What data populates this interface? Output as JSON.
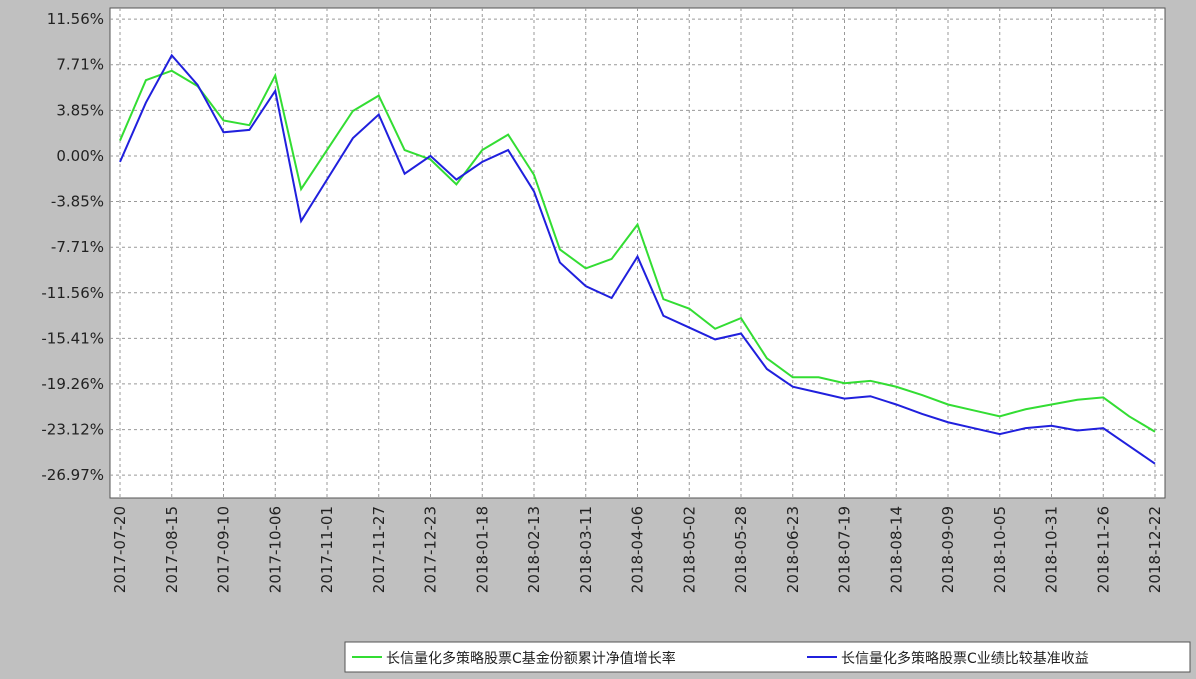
{
  "chart_data": {
    "type": "line",
    "categories": [
      "2017-07-20",
      null,
      "2017-08-15",
      null,
      "2017-09-10",
      null,
      "2017-10-06",
      null,
      "2017-11-01",
      null,
      "2017-11-27",
      null,
      "2017-12-23",
      null,
      "2018-01-18",
      null,
      "2018-02-13",
      null,
      "2018-03-11",
      null,
      "2018-04-06",
      null,
      "2018-05-02",
      null,
      "2018-05-28",
      null,
      "2018-06-23",
      null,
      "2018-07-19",
      null,
      "2018-08-14",
      null,
      "2018-09-09",
      null,
      "2018-10-05",
      null,
      "2018-10-31",
      null,
      "2018-11-26",
      null,
      "2018-12-22"
    ],
    "series": [
      {
        "name": "长信量化多策略股票C基金份额累计净值增长率",
        "color": "#33dd33",
        "values": [
          1.3,
          6.4,
          7.2,
          5.9,
          3.0,
          2.6,
          6.8,
          -2.8,
          0.5,
          3.8,
          5.1,
          0.5,
          -0.3,
          -2.4,
          0.5,
          1.8,
          -1.6,
          -7.9,
          -9.5,
          -8.7,
          -5.8,
          -12.1,
          -12.9,
          -14.6,
          -13.7,
          -17.1,
          -18.7,
          -18.7,
          -19.2,
          -19.0,
          -19.5,
          -20.2,
          -21.0,
          -21.5,
          -22.0,
          -21.4,
          -21.0,
          -20.6,
          -20.4,
          -22.0,
          -23.3
        ]
      },
      {
        "name": "长信量化多策略股票C业绩比较基准收益",
        "color": "#2020dd",
        "values": [
          -0.5,
          4.5,
          8.5,
          6.0,
          2.0,
          2.2,
          5.5,
          -5.5,
          -2.0,
          1.5,
          3.5,
          -1.5,
          0.0,
          -2.0,
          -0.5,
          0.5,
          -3.0,
          -9.0,
          -11.0,
          -12.0,
          -8.5,
          -13.5,
          -14.5,
          -15.5,
          -15.0,
          -18.0,
          -19.5,
          -20.0,
          -20.5,
          -20.3,
          -21.0,
          -21.8,
          -22.5,
          -23.0,
          -23.5,
          -23.0,
          -22.8,
          -23.2,
          -23.0,
          -24.5,
          -26.0
        ]
      }
    ],
    "ylim": [
      -28.9,
      12.5
    ],
    "yticks": [
      {
        "value": 11.56,
        "label": "11.56%"
      },
      {
        "value": 7.71,
        "label": "7.71%"
      },
      {
        "value": 3.85,
        "label": "3.85%"
      },
      {
        "value": 0,
        "label": "0.00%"
      },
      {
        "value": -3.85,
        "label": "-3.85%"
      },
      {
        "value": -7.71,
        "label": "-7.71%"
      },
      {
        "value": -11.56,
        "label": "-11.56%"
      },
      {
        "value": -15.41,
        "label": "-15.41%"
      },
      {
        "value": -19.26,
        "label": "-19.26%"
      },
      {
        "value": -23.12,
        "label": "-23.12%"
      },
      {
        "value": -26.97,
        "label": "-26.97%"
      }
    ],
    "grid": true
  }
}
